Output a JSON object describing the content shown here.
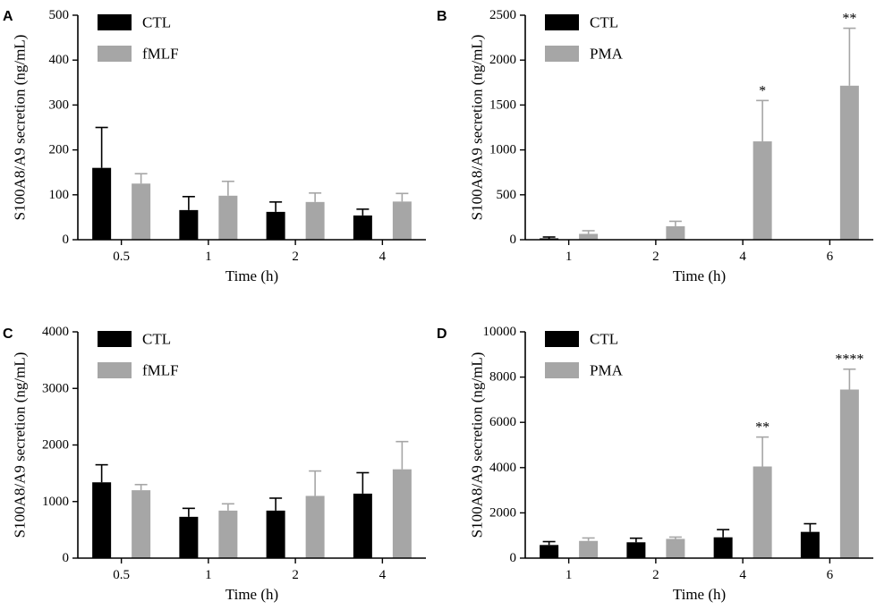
{
  "chart_data": [
    {
      "type": "bar",
      "panel": "A",
      "xlabel": "Time (h)",
      "ylabel": "S100A8/A9 secretion (ng/mL)",
      "ylim": [
        0,
        500
      ],
      "yticks": [
        0,
        100,
        200,
        300,
        400,
        500
      ],
      "categories": [
        "0.5",
        "1",
        "2",
        "4"
      ],
      "series": [
        {
          "name": "CTL",
          "color": "#000000",
          "values": [
            160,
            66,
            62,
            54
          ],
          "errors": [
            90,
            30,
            22,
            14
          ]
        },
        {
          "name": "fMLF",
          "color": "#a6a6a6",
          "values": [
            125,
            98,
            84,
            85
          ],
          "errors": [
            22,
            32,
            20,
            18
          ]
        }
      ],
      "annotations": [],
      "legend": "top-left"
    },
    {
      "type": "bar",
      "panel": "B",
      "xlabel": "Time (h)",
      "ylabel": "S100A8/A9 secretion (ng/mL)",
      "ylim": [
        0,
        2500
      ],
      "yticks": [
        0,
        500,
        1000,
        1500,
        2000,
        2500
      ],
      "categories": [
        "1",
        "2",
        "4",
        "6"
      ],
      "series": [
        {
          "name": "CTL",
          "color": "#000000",
          "values": [
            15,
            3,
            3,
            3
          ],
          "errors": [
            15,
            0,
            0,
            0
          ]
        },
        {
          "name": "PMA",
          "color": "#a6a6a6",
          "values": [
            65,
            150,
            1095,
            1715
          ],
          "errors": [
            35,
            55,
            455,
            640
          ]
        }
      ],
      "annotations": [
        {
          "category": "4",
          "series": "PMA",
          "text": "*"
        },
        {
          "category": "6",
          "series": "PMA",
          "text": "**"
        }
      ],
      "legend": "top-left"
    },
    {
      "type": "bar",
      "panel": "C",
      "xlabel": "Time (h)",
      "ylabel": "S100A8/A9 secretion (ng/mL)",
      "ylim": [
        0,
        4000
      ],
      "yticks": [
        0,
        1000,
        2000,
        3000,
        4000
      ],
      "categories": [
        "0.5",
        "1",
        "2",
        "4"
      ],
      "series": [
        {
          "name": "CTL",
          "color": "#000000",
          "values": [
            1340,
            730,
            840,
            1140
          ],
          "errors": [
            310,
            150,
            220,
            370
          ]
        },
        {
          "name": "fMLF",
          "color": "#a6a6a6",
          "values": [
            1200,
            840,
            1100,
            1570
          ],
          "errors": [
            100,
            120,
            440,
            490
          ]
        }
      ],
      "annotations": [],
      "legend": "top-left"
    },
    {
      "type": "bar",
      "panel": "D",
      "xlabel": "Time (h)",
      "ylabel": "S100A8/A9 secretion (ng/mL)",
      "ylim": [
        0,
        10000
      ],
      "yticks": [
        0,
        2000,
        4000,
        6000,
        8000,
        10000
      ],
      "categories": [
        "1",
        "2",
        "4",
        "6"
      ],
      "series": [
        {
          "name": "CTL",
          "color": "#000000",
          "values": [
            580,
            700,
            920,
            1160
          ],
          "errors": [
            150,
            180,
            340,
            360
          ]
        },
        {
          "name": "PMA",
          "color": "#a6a6a6",
          "values": [
            760,
            850,
            4050,
            7450
          ],
          "errors": [
            130,
            80,
            1300,
            900
          ]
        }
      ],
      "annotations": [
        {
          "category": "4",
          "series": "PMA",
          "text": "**"
        },
        {
          "category": "6",
          "series": "PMA",
          "text": "****"
        }
      ],
      "legend": "top-left"
    }
  ]
}
